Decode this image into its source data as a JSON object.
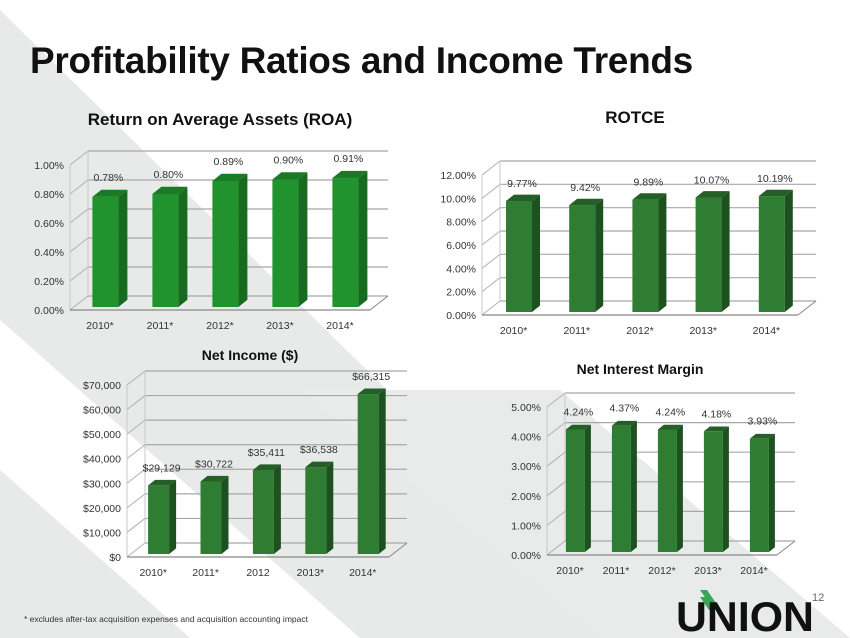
{
  "slide": {
    "title": "Profitability Ratios and Income Trends",
    "footnote": "* excludes after-tax acquisition expenses and acquisition accounting impact",
    "page_number": "12",
    "logo_text": "UNION",
    "colors": {
      "background_band": "#e8eaea",
      "bar_bright_front": "#22922f",
      "bar_bright_side": "#166b1f",
      "bar_dark_front": "#2e7d32",
      "bar_dark_side": "#1d5220",
      "logo_green": "#3aa557",
      "logo_black": "#111111"
    }
  },
  "chart_data": [
    {
      "id": "roa",
      "type": "bar",
      "title": "Return on Average Assets (ROA)",
      "categories": [
        "2010*",
        "2011*",
        "2012*",
        "2013*",
        "2014*"
      ],
      "values": [
        0.78,
        0.8,
        0.89,
        0.9,
        0.91
      ],
      "data_labels": [
        "0.78%",
        "0.80%",
        "0.89%",
        "0.90%",
        "0.91%"
      ],
      "yticks": [
        "0.00%",
        "0.20%",
        "0.40%",
        "0.60%",
        "0.80%",
        "1.00%"
      ],
      "ylim": [
        0,
        1.0
      ],
      "xlabel": "",
      "ylabel": "",
      "grid": true,
      "legend": "none",
      "style": "3d-column",
      "palette": "bright"
    },
    {
      "id": "rotce",
      "type": "bar",
      "title": "ROTCE",
      "categories": [
        "2010*",
        "2011*",
        "2012*",
        "2013*",
        "2014*"
      ],
      "values": [
        9.77,
        9.42,
        9.89,
        10.07,
        10.19
      ],
      "data_labels": [
        "9.77%",
        "9.42%",
        "9.89%",
        "10.07%",
        "10.19%"
      ],
      "yticks": [
        "0.00%",
        "2.00%",
        "4.00%",
        "6.00%",
        "8.00%",
        "10.00%",
        "12.00%"
      ],
      "ylim": [
        0,
        12
      ],
      "xlabel": "",
      "ylabel": "",
      "grid": true,
      "legend": "none",
      "style": "3d-column",
      "palette": "dark"
    },
    {
      "id": "net_income",
      "type": "bar",
      "title": "Net Income ($)",
      "categories": [
        "2010*",
        "2011*",
        "2012",
        "2013*",
        "2014*"
      ],
      "values": [
        29129,
        30722,
        35411,
        36538,
        66315
      ],
      "data_labels": [
        "$29,129",
        "$30,722",
        "$35,411",
        "$36,538",
        "$66,315"
      ],
      "yticks": [
        "$0",
        "$10,000",
        "$20,000",
        "$30,000",
        "$40,000",
        "$50,000",
        "$60,000",
        "$70,000"
      ],
      "ylim": [
        0,
        70000
      ],
      "xlabel": "",
      "ylabel": "",
      "grid": true,
      "legend": "none",
      "style": "3d-column",
      "palette": "dark"
    },
    {
      "id": "nim",
      "type": "bar",
      "title": "Net Interest Margin",
      "categories": [
        "2010*",
        "2011*",
        "2012*",
        "2013*",
        "2014*"
      ],
      "values": [
        4.24,
        4.37,
        4.24,
        4.18,
        3.93
      ],
      "data_labels": [
        "4.24%",
        "4.37%",
        "4.24%",
        "4.18%",
        "3.93%"
      ],
      "yticks": [
        "0.00%",
        "1.00%",
        "2.00%",
        "3.00%",
        "4.00%",
        "5.00%"
      ],
      "ylim": [
        0,
        5
      ],
      "xlabel": "",
      "ylabel": "",
      "grid": true,
      "legend": "none",
      "style": "3d-column",
      "palette": "dark"
    }
  ]
}
